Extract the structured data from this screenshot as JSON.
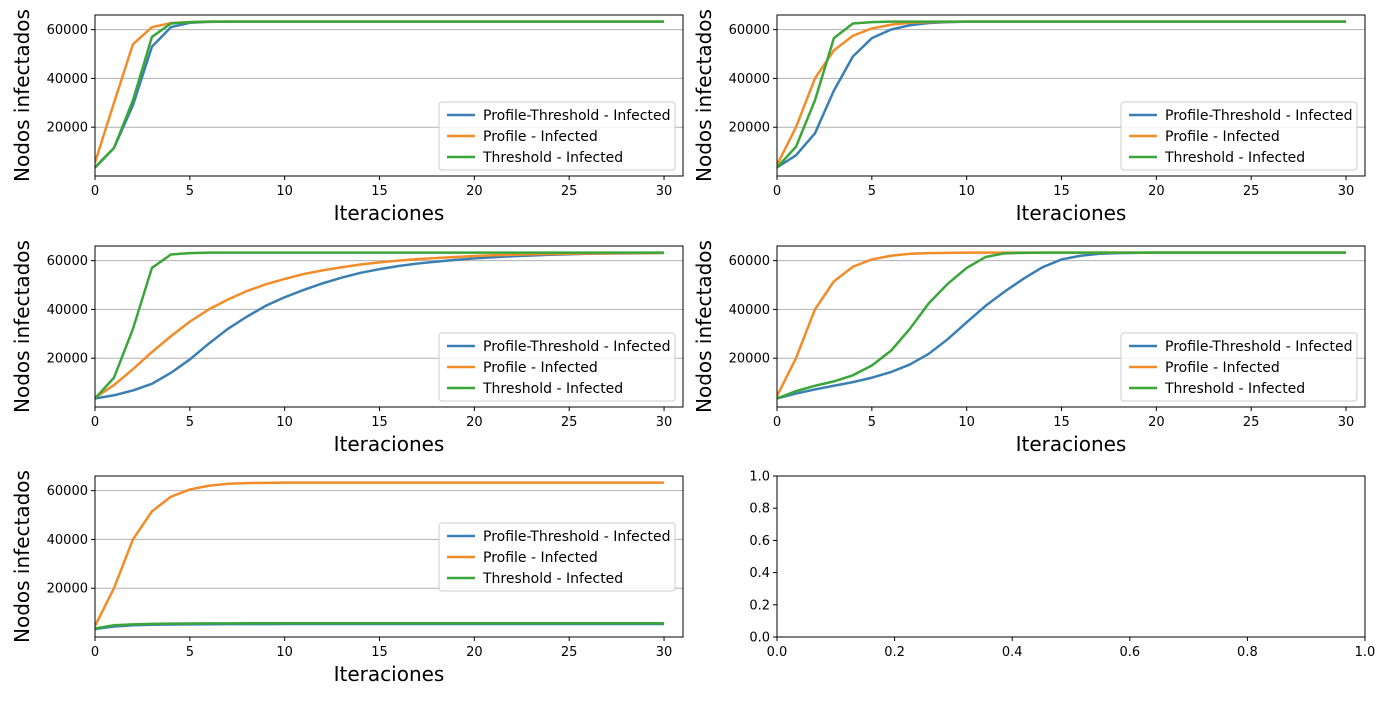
{
  "colors": {
    "profile_threshold": "#3a7fb4",
    "profile": "#f28c28",
    "threshold": "#3aa63a",
    "grid": "#b0b0b0",
    "axes": "#000000"
  },
  "chart_data": [
    {
      "type": "line",
      "xlabel": "Iteraciones",
      "ylabel": "Nodos infectados",
      "xlim": [
        0,
        31
      ],
      "ylim": [
        0,
        66000
      ],
      "xticks": [
        "0",
        "5",
        "10",
        "15",
        "20",
        "25",
        "30"
      ],
      "yticks": [
        "20000",
        "40000",
        "60000"
      ],
      "grid_y": true,
      "legend_position": "lower right",
      "x": [
        0,
        1,
        2,
        3,
        4,
        5,
        6,
        7,
        8,
        9,
        10,
        11,
        12,
        13,
        14,
        15,
        16,
        17,
        18,
        19,
        20,
        21,
        22,
        23,
        24,
        25,
        26,
        27,
        28,
        29,
        30
      ],
      "series": [
        {
          "name": "Profile-Threshold - Infected",
          "color_key": "profile_threshold",
          "values": [
            3500,
            11500,
            29000,
            53000,
            61000,
            62800,
            63200,
            63300,
            63300,
            63300,
            63300,
            63300,
            63300,
            63300,
            63300,
            63300,
            63300,
            63300,
            63300,
            63300,
            63300,
            63300,
            63300,
            63300,
            63300,
            63300,
            63300,
            63300,
            63300,
            63300,
            63300
          ]
        },
        {
          "name": "Profile - Infected",
          "color_key": "profile",
          "values": [
            5500,
            30000,
            54000,
            61000,
            62700,
            63100,
            63300,
            63300,
            63300,
            63300,
            63300,
            63300,
            63300,
            63300,
            63300,
            63300,
            63300,
            63300,
            63300,
            63300,
            63300,
            63300,
            63300,
            63300,
            63300,
            63300,
            63300,
            63300,
            63300,
            63300,
            63300
          ]
        },
        {
          "name": "Threshold - Infected",
          "color_key": "threshold",
          "values": [
            3500,
            11500,
            31000,
            57000,
            62500,
            63100,
            63300,
            63300,
            63300,
            63300,
            63300,
            63300,
            63300,
            63300,
            63300,
            63300,
            63300,
            63300,
            63300,
            63300,
            63300,
            63300,
            63300,
            63300,
            63300,
            63300,
            63300,
            63300,
            63300,
            63300,
            63300
          ]
        }
      ]
    },
    {
      "type": "line",
      "xlabel": "Iteraciones",
      "ylabel": "Nodos infectados",
      "xlim": [
        0,
        31
      ],
      "ylim": [
        0,
        66000
      ],
      "xticks": [
        "0",
        "5",
        "10",
        "15",
        "20",
        "25",
        "30"
      ],
      "yticks": [
        "20000",
        "40000",
        "60000"
      ],
      "grid_y": true,
      "legend_position": "lower right",
      "x": [
        0,
        1,
        2,
        3,
        4,
        5,
        6,
        7,
        8,
        9,
        10,
        11,
        12,
        13,
        14,
        15,
        16,
        17,
        18,
        19,
        20,
        21,
        22,
        23,
        24,
        25,
        26,
        27,
        28,
        29,
        30
      ],
      "series": [
        {
          "name": "Profile-Threshold - Infected",
          "color_key": "profile_threshold",
          "values": [
            3500,
            8500,
            17500,
            35000,
            49000,
            56500,
            60000,
            61800,
            62700,
            63100,
            63300,
            63300,
            63300,
            63300,
            63300,
            63300,
            63300,
            63300,
            63300,
            63300,
            63300,
            63300,
            63300,
            63300,
            63300,
            63300,
            63300,
            63300,
            63300,
            63300,
            63300
          ]
        },
        {
          "name": "Profile - Infected",
          "color_key": "profile",
          "values": [
            4500,
            20000,
            40000,
            51500,
            57500,
            60500,
            62000,
            62800,
            63100,
            63200,
            63300,
            63300,
            63300,
            63300,
            63300,
            63300,
            63300,
            63300,
            63300,
            63300,
            63300,
            63300,
            63300,
            63300,
            63300,
            63300,
            63300,
            63300,
            63300,
            63300,
            63300
          ]
        },
        {
          "name": "Threshold - Infected",
          "color_key": "threshold",
          "values": [
            3500,
            12000,
            31000,
            56500,
            62500,
            63100,
            63300,
            63300,
            63300,
            63300,
            63300,
            63300,
            63300,
            63300,
            63300,
            63300,
            63300,
            63300,
            63300,
            63300,
            63300,
            63300,
            63300,
            63300,
            63300,
            63300,
            63300,
            63300,
            63300,
            63300,
            63300
          ]
        }
      ]
    },
    {
      "type": "line",
      "xlabel": "Iteraciones",
      "ylabel": "Nodos infectados",
      "xlim": [
        0,
        31
      ],
      "ylim": [
        0,
        66000
      ],
      "xticks": [
        "0",
        "5",
        "10",
        "15",
        "20",
        "25",
        "30"
      ],
      "yticks": [
        "20000",
        "40000",
        "60000"
      ],
      "grid_y": true,
      "legend_position": "lower right",
      "x": [
        0,
        1,
        2,
        3,
        4,
        5,
        6,
        7,
        8,
        9,
        10,
        11,
        12,
        13,
        14,
        15,
        16,
        17,
        18,
        19,
        20,
        21,
        22,
        23,
        24,
        25,
        26,
        27,
        28,
        29,
        30
      ],
      "series": [
        {
          "name": "Profile-Threshold - Infected",
          "color_key": "profile_threshold",
          "values": [
            3500,
            4800,
            6800,
            9500,
            14000,
            19500,
            26000,
            32000,
            37000,
            41500,
            45000,
            48000,
            50700,
            53000,
            55000,
            56500,
            57800,
            58800,
            59600,
            60300,
            60900,
            61400,
            61800,
            62100,
            62400,
            62600,
            62800,
            62900,
            63000,
            63100,
            63200
          ]
        },
        {
          "name": "Profile - Infected",
          "color_key": "profile",
          "values": [
            3800,
            9000,
            15500,
            22500,
            29000,
            35000,
            40000,
            44000,
            47500,
            50300,
            52500,
            54500,
            56000,
            57300,
            58400,
            59300,
            60000,
            60600,
            61100,
            61500,
            61900,
            62200,
            62400,
            62600,
            62700,
            62800,
            62900,
            63000,
            63100,
            63100,
            63200
          ]
        },
        {
          "name": "Threshold - Infected",
          "color_key": "threshold",
          "values": [
            3500,
            12000,
            32000,
            57000,
            62500,
            63100,
            63300,
            63300,
            63300,
            63300,
            63300,
            63300,
            63300,
            63300,
            63300,
            63300,
            63300,
            63300,
            63300,
            63300,
            63300,
            63300,
            63300,
            63300,
            63300,
            63300,
            63300,
            63300,
            63300,
            63300,
            63300
          ]
        }
      ]
    },
    {
      "type": "line",
      "xlabel": "Iteraciones",
      "ylabel": "Nodos infectados",
      "xlim": [
        0,
        31
      ],
      "ylim": [
        0,
        66000
      ],
      "xticks": [
        "0",
        "5",
        "10",
        "15",
        "20",
        "25",
        "30"
      ],
      "yticks": [
        "20000",
        "40000",
        "60000"
      ],
      "grid_y": true,
      "legend_position": "lower right",
      "x": [
        0,
        1,
        2,
        3,
        4,
        5,
        6,
        7,
        8,
        9,
        10,
        11,
        12,
        13,
        14,
        15,
        16,
        17,
        18,
        19,
        20,
        21,
        22,
        23,
        24,
        25,
        26,
        27,
        28,
        29,
        30
      ],
      "series": [
        {
          "name": "Profile-Threshold - Infected",
          "color_key": "profile_threshold",
          "values": [
            3500,
            5500,
            7200,
            8700,
            10200,
            12000,
            14300,
            17400,
            21800,
            27800,
            34700,
            41500,
            47300,
            52600,
            57300,
            60500,
            62000,
            62800,
            63100,
            63200,
            63300,
            63300,
            63300,
            63300,
            63300,
            63300,
            63300,
            63300,
            63300,
            63300,
            63300
          ]
        },
        {
          "name": "Profile - Infected",
          "color_key": "profile",
          "values": [
            4500,
            20000,
            40000,
            51500,
            57500,
            60500,
            62000,
            62800,
            63100,
            63200,
            63300,
            63300,
            63300,
            63300,
            63300,
            63300,
            63300,
            63300,
            63300,
            63300,
            63300,
            63300,
            63300,
            63300,
            63300,
            63300,
            63300,
            63300,
            63300,
            63300,
            63300
          ]
        },
        {
          "name": "Threshold - Infected",
          "color_key": "threshold",
          "values": [
            3500,
            6500,
            8700,
            10500,
            13000,
            17000,
            23000,
            32000,
            42500,
            50500,
            57000,
            61500,
            63000,
            63200,
            63300,
            63300,
            63300,
            63300,
            63300,
            63300,
            63300,
            63300,
            63300,
            63300,
            63300,
            63300,
            63300,
            63300,
            63300,
            63300,
            63300
          ]
        }
      ]
    },
    {
      "type": "line",
      "xlabel": "Iteraciones",
      "ylabel": "Nodos infectados",
      "xlim": [
        0,
        31
      ],
      "ylim": [
        0,
        66000
      ],
      "xticks": [
        "0",
        "5",
        "10",
        "15",
        "20",
        "25",
        "30"
      ],
      "yticks": [
        "20000",
        "40000",
        "60000"
      ],
      "grid_y": true,
      "legend_position": "right",
      "x": [
        0,
        1,
        2,
        3,
        4,
        5,
        6,
        7,
        8,
        9,
        10,
        11,
        12,
        13,
        14,
        15,
        16,
        17,
        18,
        19,
        20,
        21,
        22,
        23,
        24,
        25,
        26,
        27,
        28,
        29,
        30
      ],
      "series": [
        {
          "name": "Profile-Threshold - Infected",
          "color_key": "profile_threshold",
          "values": [
            3300,
            4300,
            4800,
            5000,
            5100,
            5200,
            5250,
            5300,
            5300,
            5300,
            5350,
            5350,
            5350,
            5350,
            5350,
            5350,
            5350,
            5350,
            5350,
            5350,
            5350,
            5350,
            5350,
            5350,
            5350,
            5350,
            5350,
            5350,
            5350,
            5350,
            5350
          ]
        },
        {
          "name": "Profile - Infected",
          "color_key": "profile",
          "values": [
            4500,
            20000,
            40000,
            51500,
            57500,
            60500,
            62000,
            62800,
            63100,
            63200,
            63300,
            63300,
            63300,
            63300,
            63300,
            63300,
            63300,
            63300,
            63300,
            63300,
            63300,
            63300,
            63300,
            63300,
            63300,
            63300,
            63300,
            63300,
            63300,
            63300,
            63300
          ]
        },
        {
          "name": "Threshold - Infected",
          "color_key": "threshold",
          "values": [
            3500,
            4800,
            5200,
            5400,
            5500,
            5550,
            5600,
            5600,
            5650,
            5650,
            5650,
            5650,
            5650,
            5650,
            5650,
            5650,
            5650,
            5650,
            5650,
            5650,
            5650,
            5650,
            5650,
            5650,
            5650,
            5650,
            5650,
            5650,
            5650,
            5650,
            5650
          ]
        }
      ]
    },
    {
      "type": "line",
      "xlabel": "",
      "ylabel": "",
      "xlim": [
        0,
        1
      ],
      "ylim": [
        0,
        1
      ],
      "xticks": [
        "0.0",
        "0.2",
        "0.4",
        "0.6",
        "0.8",
        "1.0"
      ],
      "yticks": [
        "0.0",
        "0.2",
        "0.4",
        "0.6",
        "0.8",
        "1.0"
      ],
      "grid_y": false,
      "series": []
    }
  ]
}
